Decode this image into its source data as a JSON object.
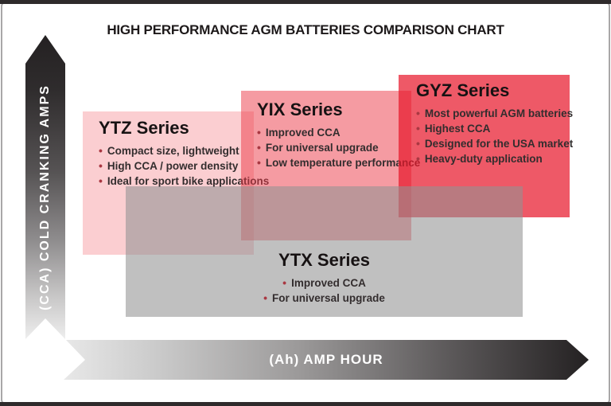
{
  "frame": {
    "title": "HIGH PERFORMANCE AGM BATTERIES COMPARISON CHART",
    "strip_color": "#2e2a2b",
    "border_color": "#a9a7a8"
  },
  "axes": {
    "y_label": "(CCA) COLD CRANKING AMPS",
    "x_label": "(Ah) AMP HOUR"
  },
  "series": [
    {
      "name": "YTZ Series",
      "fill": "rgba(238,64,79,0.26)",
      "bullets": [
        "Compact size, lightweight",
        "High CCA / power density",
        "Ideal for sport bike applications"
      ]
    },
    {
      "name": "YIX Series",
      "fill": "rgba(235,55,70,0.5)",
      "bullets": [
        "Improved CCA",
        "For universal upgrade",
        "Low temperature performance"
      ]
    },
    {
      "name": "GYZ Series",
      "fill": "rgba(232,25,45,0.72)",
      "bullets": [
        "Most powerful AGM batteries",
        "Highest CCA",
        "Designed for the USA market",
        "Heavy-duty application"
      ]
    },
    {
      "name": "YTX Series",
      "fill": "rgba(146,146,146,0.58)",
      "bullets": [
        "Improved CCA",
        "For universal upgrade"
      ]
    }
  ],
  "bullet_dot_color": "#a93842"
}
